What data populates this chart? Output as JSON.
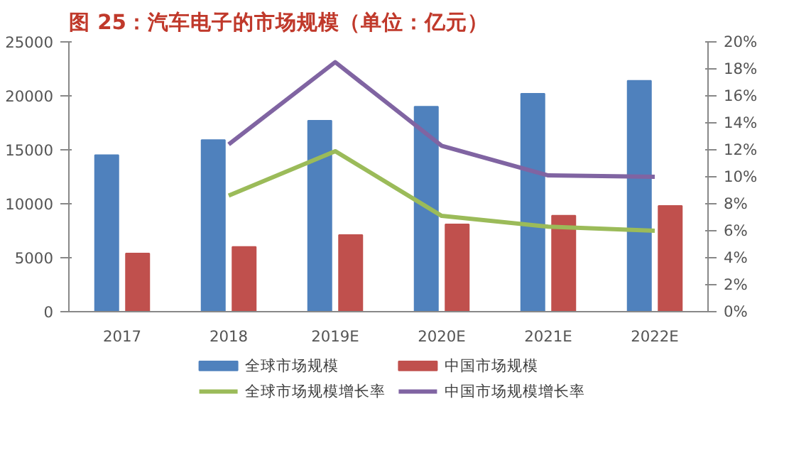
{
  "chart_data": {
    "type": "bar",
    "title": "图 25：汽车电子的市场规模（单位：亿元）",
    "categories": [
      "2017",
      "2018",
      "2019E",
      "2020E",
      "2021E",
      "2022E"
    ],
    "series": [
      {
        "name": "全球市场规模",
        "color": "#4f81bd",
        "values": [
          14500,
          15900,
          17700,
          19000,
          20200,
          21400
        ]
      },
      {
        "name": "中国市场规模",
        "color": "#c0504d",
        "values": [
          5400,
          6000,
          7100,
          8100,
          8900,
          9800
        ]
      },
      {
        "name": "全球市场规模增长率",
        "type": "line",
        "axis": "y2",
        "color": "#9bbb59",
        "values": [
          null,
          8.6,
          11.9,
          7.1,
          6.3,
          6.0
        ]
      },
      {
        "name": "中国市场规模增长率",
        "type": "line",
        "axis": "y2",
        "color": "#8064a2",
        "values": [
          null,
          12.4,
          18.5,
          12.3,
          10.1,
          10.0
        ]
      }
    ],
    "ylim": [
      0,
      25000
    ],
    "yticks": [
      0,
      5000,
      10000,
      15000,
      20000,
      25000
    ],
    "y2lim": [
      0,
      20
    ],
    "y2ticks": [
      {
        "value": 0,
        "label": "0%"
      },
      {
        "value": 2,
        "label": "2%"
      },
      {
        "value": 4,
        "label": "4%"
      },
      {
        "value": 6,
        "label": "6%"
      },
      {
        "value": 8,
        "label": "8%"
      },
      {
        "value": 10,
        "label": "10%"
      },
      {
        "value": 12,
        "label": "12%"
      },
      {
        "value": 14,
        "label": "14%"
      },
      {
        "value": 16,
        "label": "16%"
      },
      {
        "value": 18,
        "label": "18%"
      },
      {
        "value": 20,
        "label": "20%"
      }
    ],
    "grid": false,
    "legend": "bottom"
  }
}
